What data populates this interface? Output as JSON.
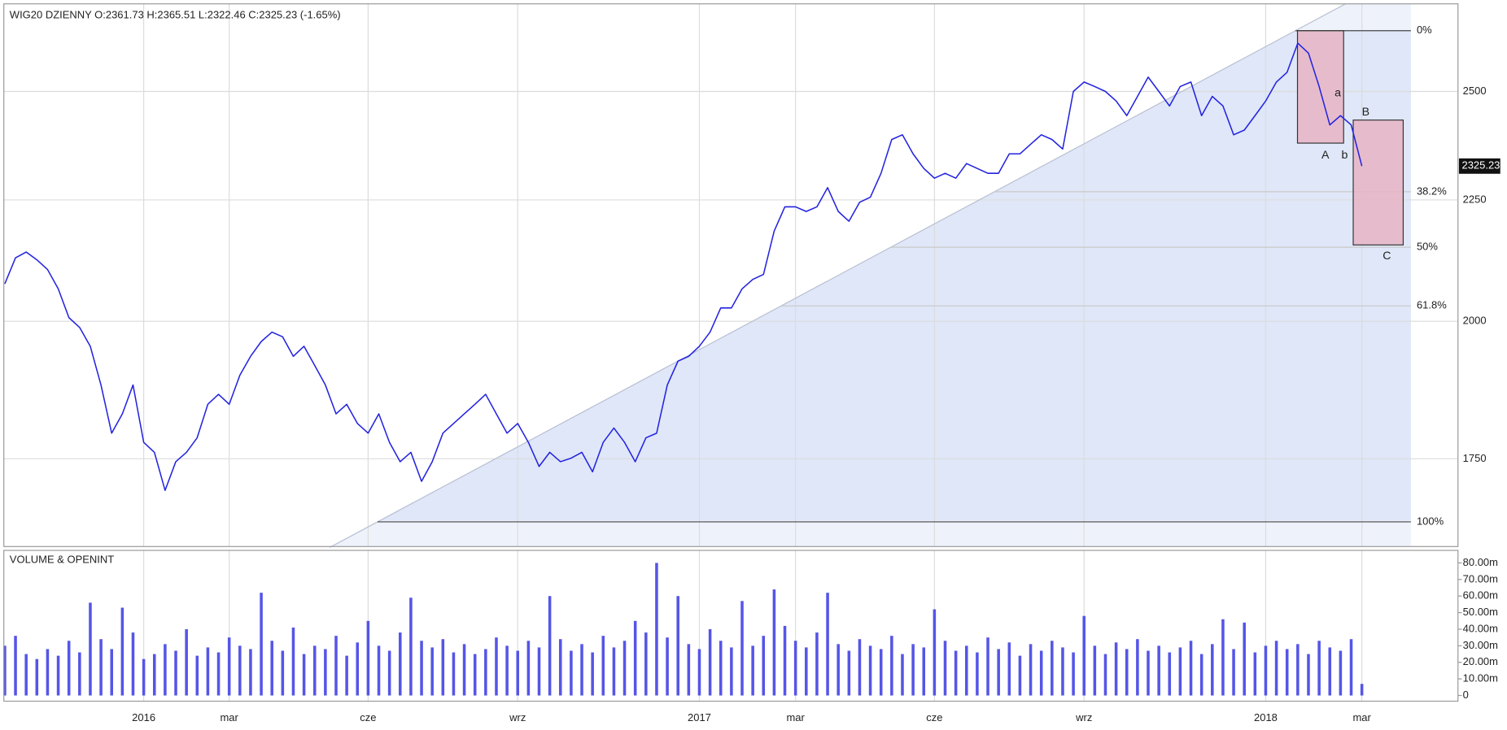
{
  "chart_data": [
    {
      "type": "line",
      "title": "WIG20  DZIENNY  O:2361.73  H:2365.51  L:2322.46  C:2325.23  (-1.65%)",
      "color": "#2323e0",
      "log_scale": true,
      "grid": true,
      "ylim": [
        1607,
        2722
      ],
      "yticks": [
        1750,
        2000,
        2250,
        2500
      ],
      "values": [
        2074,
        2127,
        2139,
        2123,
        2103,
        2064,
        2007,
        1988,
        1952,
        1880,
        1794,
        1828,
        1880,
        1778,
        1761,
        1697,
        1745,
        1761,
        1786,
        1845,
        1863,
        1845,
        1898,
        1933,
        1961,
        1979,
        1970,
        1933,
        1952,
        1916,
        1880,
        1828,
        1845,
        1811,
        1794,
        1828,
        1778,
        1745,
        1761,
        1712,
        1745,
        1794,
        1811,
        1828,
        1845,
        1863,
        1828,
        1794,
        1811,
        1778,
        1737,
        1761,
        1745,
        1751,
        1761,
        1728,
        1778,
        1803,
        1778,
        1745,
        1786,
        1794,
        1880,
        1924,
        1933,
        1952,
        1979,
        2026,
        2026,
        2064,
        2083,
        2093,
        2183,
        2235,
        2235,
        2225,
        2235,
        2277,
        2225,
        2204,
        2245,
        2256,
        2309,
        2386,
        2397,
        2353,
        2320,
        2298,
        2309,
        2298,
        2331,
        2320,
        2309,
        2309,
        2353,
        2353,
        2375,
        2397,
        2386,
        2364,
        2500,
        2523,
        2512,
        2500,
        2477,
        2442,
        2488,
        2535,
        2500,
        2465,
        2512,
        2523,
        2442,
        2488,
        2465,
        2397,
        2408,
        2442,
        2477,
        2523,
        2547,
        2620,
        2595,
        2512,
        2420,
        2442,
        2420,
        2325.23
      ],
      "fib_levels": [
        {
          "value": 2652,
          "label": "0%"
        },
        {
          "value": 2268,
          "label": "38.2%"
        },
        {
          "value": 2149,
          "label": "50%"
        },
        {
          "value": 2030,
          "label": "61.8%"
        },
        {
          "value": 1646,
          "label": "100%"
        }
      ],
      "wave_labels": [
        "A",
        "a",
        "b",
        "B",
        "C"
      ]
    },
    {
      "type": "bar",
      "title": "VOLUME & OPENINT",
      "color": "#5555e8",
      "grid": true,
      "ylim": [
        -1.7,
        86.4
      ],
      "yticks": [
        0,
        {
          "value": 10,
          "label": "10.00m"
        },
        {
          "value": 20,
          "label": "20.00m"
        },
        {
          "value": 30,
          "label": "30.00m"
        },
        {
          "value": 40,
          "label": "40.00m"
        },
        {
          "value": 50,
          "label": "50.00m"
        },
        {
          "value": 60,
          "label": "60.00m"
        },
        {
          "value": 70,
          "label": "70.00m"
        },
        {
          "value": 80,
          "label": "80.00m"
        }
      ],
      "categories": [
        null,
        null,
        null,
        null,
        null,
        null,
        null,
        null,
        null,
        null,
        null,
        null,
        null,
        "2016",
        null,
        null,
        null,
        null,
        null,
        null,
        null,
        "mar",
        null,
        null,
        null,
        null,
        null,
        null,
        null,
        null,
        null,
        null,
        null,
        null,
        "cze",
        null,
        null,
        null,
        null,
        null,
        null,
        null,
        null,
        null,
        null,
        null,
        null,
        null,
        "wrz",
        null,
        null,
        null,
        null,
        null,
        null,
        null,
        null,
        null,
        null,
        null,
        null,
        null,
        null,
        null,
        null,
        "2017",
        null,
        null,
        null,
        null,
        null,
        null,
        null,
        null,
        "mar",
        null,
        null,
        null,
        null,
        null,
        null,
        null,
        null,
        null,
        null,
        null,
        null,
        "cze",
        null,
        null,
        null,
        null,
        null,
        null,
        null,
        null,
        null,
        null,
        null,
        null,
        null,
        "wrz",
        null,
        null,
        null,
        null,
        null,
        null,
        null,
        null,
        null,
        null,
        null,
        null,
        null,
        null,
        null,
        null,
        "2018",
        null,
        null,
        null,
        null,
        null,
        null,
        null,
        null,
        "mar"
      ],
      "values": [
        30,
        36,
        25,
        22,
        28,
        24,
        33,
        26,
        56,
        34,
        28,
        53,
        38,
        22,
        25,
        31,
        27,
        40,
        24,
        29,
        26,
        35,
        30,
        28,
        62,
        33,
        27,
        41,
        25,
        30,
        28,
        36,
        24,
        32,
        45,
        30,
        27,
        38,
        59,
        33,
        29,
        34,
        26,
        31,
        25,
        28,
        35,
        30,
        27,
        33,
        29,
        60,
        34,
        27,
        31,
        26,
        36,
        29,
        33,
        45,
        38,
        80,
        35,
        60,
        31,
        28,
        40,
        33,
        29,
        57,
        30,
        36,
        64,
        42,
        33,
        29,
        38,
        62,
        31,
        27,
        34,
        30,
        28,
        36,
        25,
        31,
        29,
        52,
        33,
        27,
        30,
        26,
        35,
        28,
        32,
        24,
        31,
        27,
        33,
        29,
        26,
        48,
        30,
        25,
        32,
        28,
        34,
        27,
        30,
        26,
        29,
        33,
        25,
        31,
        46,
        28,
        44,
        26,
        30,
        33,
        28,
        31,
        25,
        33,
        29,
        27,
        34,
        7
      ]
    }
  ]
}
